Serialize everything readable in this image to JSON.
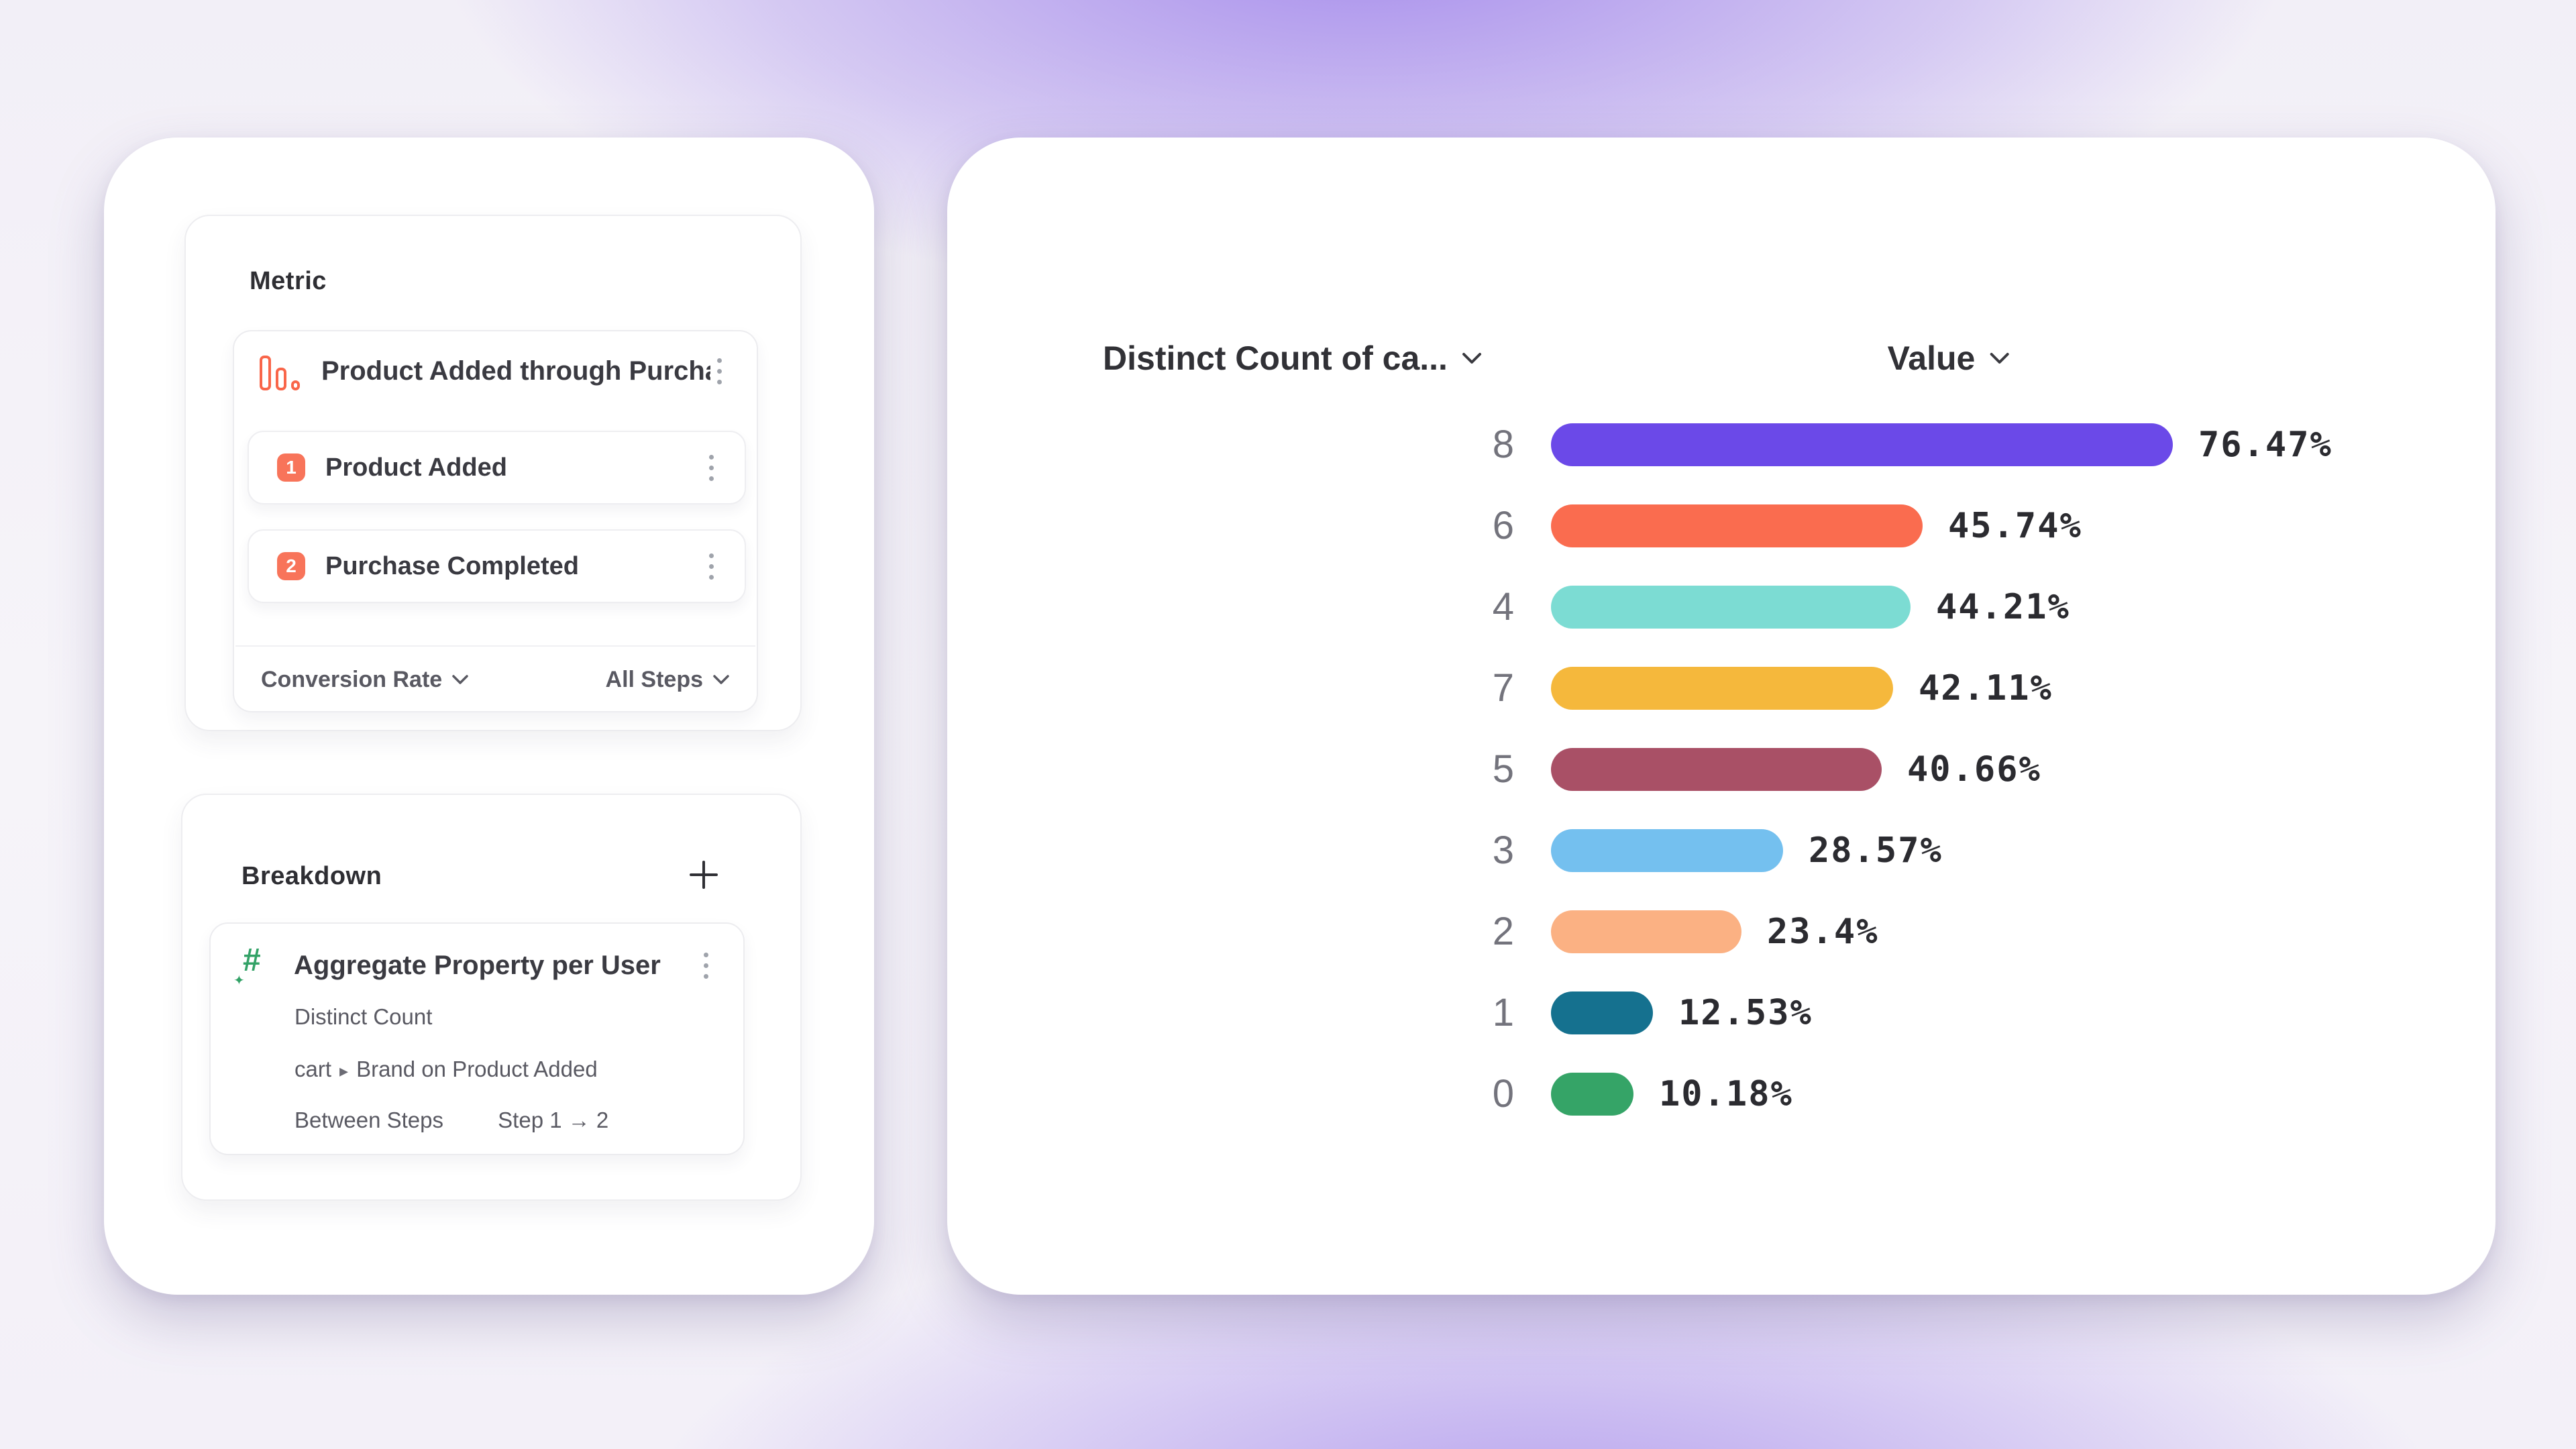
{
  "left_panel": {
    "metric": {
      "label": "Metric",
      "funnel_item": {
        "icon": "funnel-bars-icon",
        "title": "Product Added through Purcha..."
      },
      "steps": [
        {
          "num": "1",
          "label": "Product Added"
        },
        {
          "num": "2",
          "label": "Purchase Completed"
        }
      ],
      "footer": {
        "measurement": "Conversion Rate",
        "steps_scope": "All Steps"
      }
    },
    "breakdown": {
      "label": "Breakdown",
      "item": {
        "icon": "aggregate-hash-icon",
        "title": "Aggregate Property per User",
        "aggregation": "Distinct Count",
        "property_prefix": "cart",
        "property_separator": "▸",
        "property_name": "Brand on Product Added",
        "between_label": "Between Steps",
        "between_value": "Step 1 → 2"
      }
    }
  },
  "chart": {
    "col1_header": "Distinct Count of ca...",
    "col2_header": "Value"
  },
  "chart_data": {
    "type": "bar",
    "orientation": "horizontal",
    "title": "",
    "col_headers": [
      "Distinct Count of ca...",
      "Value"
    ],
    "categories": [
      "8",
      "6",
      "4",
      "7",
      "5",
      "3",
      "2",
      "1",
      "0"
    ],
    "values": [
      76.47,
      45.74,
      44.21,
      42.11,
      40.66,
      28.57,
      23.4,
      12.53,
      10.18
    ],
    "value_labels": [
      "76.47%",
      "45.74%",
      "44.21%",
      "42.11%",
      "40.66%",
      "28.57%",
      "23.4%",
      "12.53%",
      "10.18%"
    ],
    "bar_colors": [
      "#6b49e8",
      "#fa6c4f",
      "#7cdcd3",
      "#f5b83c",
      "#a95066",
      "#74c0ef",
      "#fbb183",
      "#15718f",
      "#35a467"
    ],
    "value_unit": "%",
    "xlim": [
      0,
      100
    ],
    "grid": false,
    "legend": false
  }
}
